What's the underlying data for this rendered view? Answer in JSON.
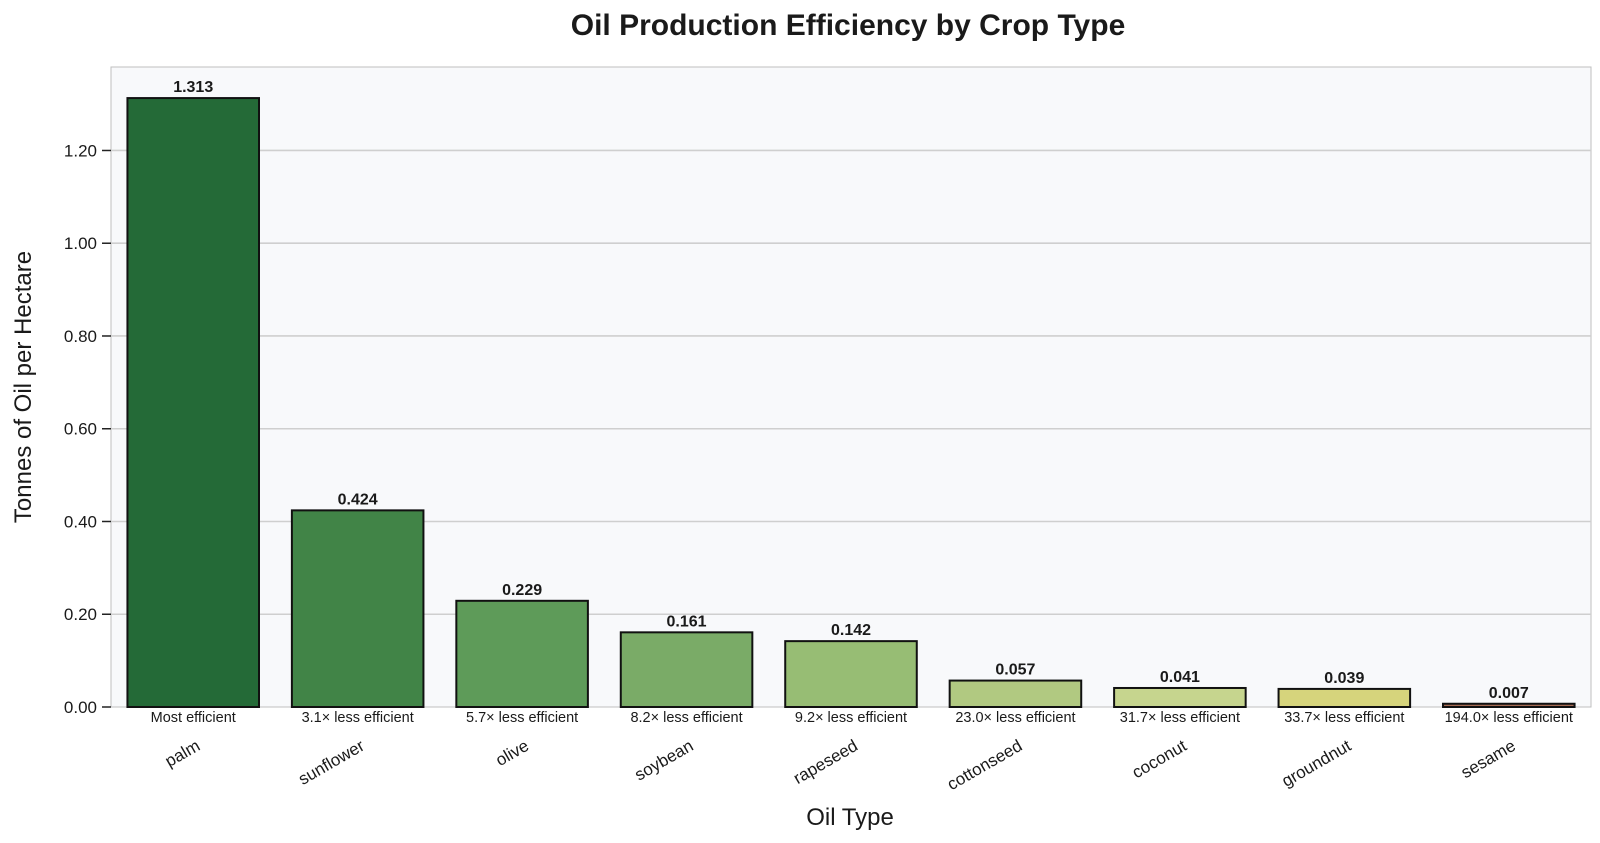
{
  "chart_data": {
    "type": "bar",
    "title": "Oil Production Efficiency by Crop Type",
    "xlabel": "Oil Type",
    "ylabel": "Tonnes of Oil per Hectare",
    "ylim": [
      0,
      1.38
    ],
    "yticks": [
      "0.00",
      "0.20",
      "0.40",
      "0.60",
      "0.80",
      "1.00",
      "1.20"
    ],
    "grid": true,
    "categories": [
      "palm",
      "sunflower",
      "olive",
      "soybean",
      "rapeseed",
      "cottonseed",
      "coconut",
      "groundnut",
      "sesame"
    ],
    "values": [
      1.313,
      0.424,
      0.229,
      0.161,
      0.142,
      0.057,
      0.041,
      0.039,
      0.007
    ],
    "value_labels": [
      "1.313",
      "0.424",
      "0.229",
      "0.161",
      "0.142",
      "0.057",
      "0.041",
      "0.039",
      "0.007"
    ],
    "annotations": [
      "Most efficient",
      "3.1× less efficient",
      "5.7× less efficient",
      "8.2× less efficient",
      "9.2× less efficient",
      "23.0× less efficient",
      "31.7× less efficient",
      "33.7× less efficient",
      "194.0× less efficient"
    ],
    "colors": [
      "#246a37",
      "#418447",
      "#5e9b59",
      "#7aab67",
      "#97bd74",
      "#b1c981",
      "#c6d58e",
      "#d6d47c",
      "#a56a52"
    ]
  }
}
